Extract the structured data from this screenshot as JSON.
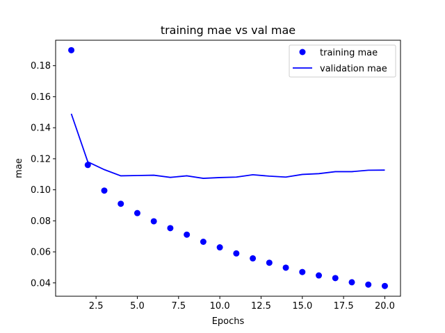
{
  "chart_data": {
    "type": "line",
    "title": "training mae vs val mae",
    "xlabel": "Epochs",
    "ylabel": "mae",
    "xlim": [
      0.05,
      20.95
    ],
    "ylim": [
      0.0314,
      0.1964
    ],
    "xticks": [
      2.5,
      5.0,
      7.5,
      10.0,
      12.5,
      15.0,
      17.5,
      20.0
    ],
    "xtick_labels": [
      "2.5",
      "5.0",
      "7.5",
      "10.0",
      "12.5",
      "15.0",
      "17.5",
      "20.0"
    ],
    "yticks": [
      0.04,
      0.06,
      0.08,
      0.1,
      0.12,
      0.14,
      0.16,
      0.18
    ],
    "ytick_labels": [
      "0.04",
      "0.06",
      "0.08",
      "0.10",
      "0.12",
      "0.14",
      "0.16",
      "0.18"
    ],
    "grid": false,
    "legend_position": "top-right",
    "x": [
      1,
      2,
      3,
      4,
      5,
      6,
      7,
      8,
      9,
      10,
      11,
      12,
      13,
      14,
      15,
      16,
      17,
      18,
      19,
      20
    ],
    "series": [
      {
        "name": "training mae",
        "style": "points",
        "color": "#0000ff",
        "values": [
          0.19,
          0.116,
          0.0995,
          0.091,
          0.085,
          0.0797,
          0.0753,
          0.0711,
          0.0665,
          0.0629,
          0.059,
          0.0558,
          0.053,
          0.0498,
          0.047,
          0.0448,
          0.0431,
          0.0404,
          0.0389,
          0.038
        ]
      },
      {
        "name": "validation mae",
        "style": "line",
        "color": "#0000ff",
        "values": [
          0.149,
          0.118,
          0.113,
          0.109,
          0.1092,
          0.1094,
          0.108,
          0.109,
          0.1074,
          0.1079,
          0.1082,
          0.1097,
          0.1088,
          0.1082,
          0.1099,
          0.1104,
          0.1117,
          0.1117,
          0.1126,
          0.1127
        ]
      }
    ]
  }
}
